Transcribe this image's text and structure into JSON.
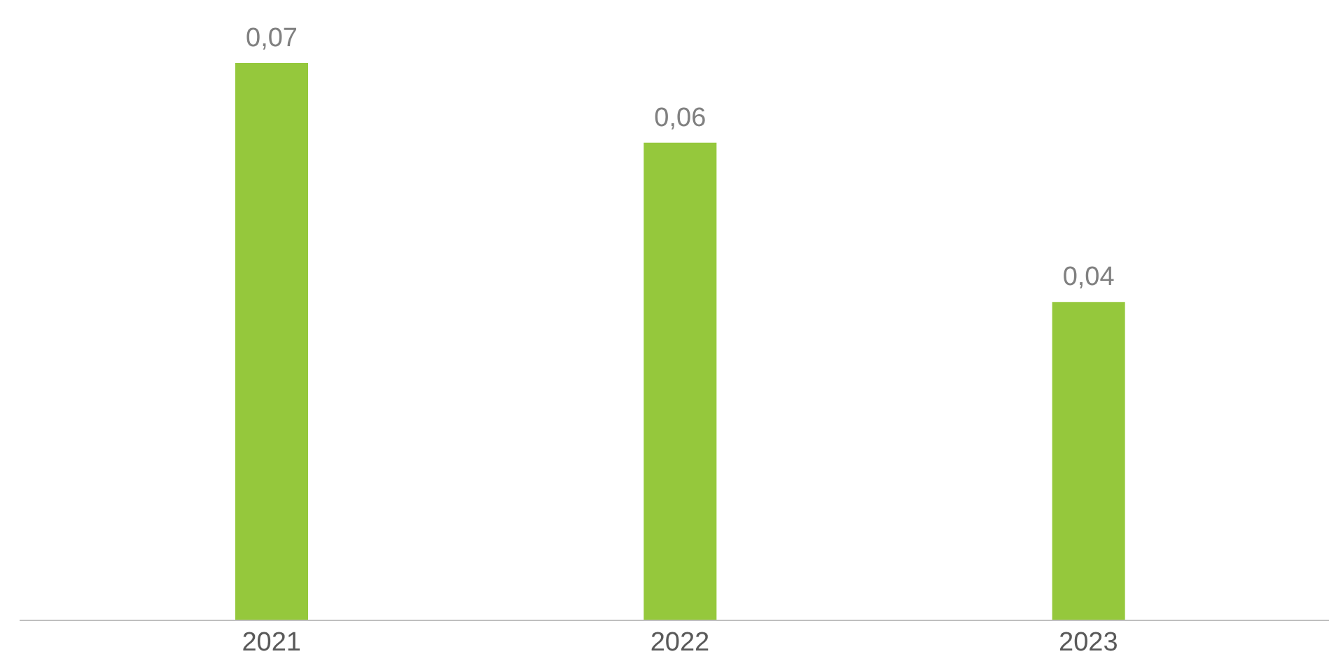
{
  "chart_data": {
    "type": "bar",
    "categories": [
      "2021",
      "2022",
      "2023"
    ],
    "values": [
      0.07,
      0.06,
      0.04
    ],
    "color": "#95c83c",
    "value_labels": [
      "0,07",
      "0,06",
      "0,04"
    ]
  }
}
